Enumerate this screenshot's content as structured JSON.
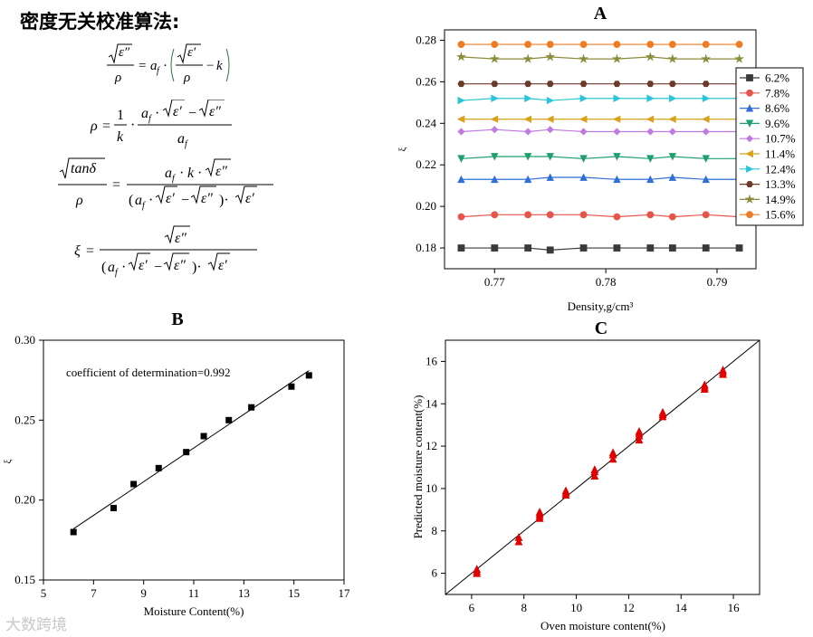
{
  "equations": {
    "title": "密度无关校准算法:",
    "eq1": "√ε″ / ρ = a_f · ( √ε′ / ρ − k )",
    "eq2": "ρ = (1/k) · ( a_f · √ε′ − √ε″ ) / a_f",
    "eq3": "√tanδ / ρ = a_f · k · √ε″ / ( ( a_f · √ε′ − √ε″ ) · √ε′ )",
    "eq4": "ξ = √ε″ / ( ( a_f · √ε′ − √ε″ ) · √ε′ )"
  },
  "watermark": "大数跨境",
  "chart_data": [
    {
      "panel": "A",
      "type": "line",
      "xlabel": "Density,g/cm³",
      "ylabel": "ξ",
      "xlim": [
        0.7655,
        0.7935
      ],
      "ylim": [
        0.17,
        0.285
      ],
      "xticks": [
        0.77,
        0.78,
        0.79
      ],
      "yticks": [
        0.18,
        0.2,
        0.22,
        0.24,
        0.26,
        0.28
      ],
      "x": [
        0.767,
        0.77,
        0.773,
        0.775,
        0.778,
        0.781,
        0.784,
        0.786,
        0.789,
        0.792
      ],
      "legend_position": "right",
      "series": [
        {
          "name": "6.2%",
          "color": "#3a3a3a",
          "marker": "square",
          "values": [
            0.18,
            0.18,
            0.18,
            0.179,
            0.18,
            0.18,
            0.18,
            0.18,
            0.18,
            0.18
          ]
        },
        {
          "name": "7.8%",
          "color": "#e8534a",
          "marker": "circle",
          "values": [
            0.195,
            0.196,
            0.196,
            0.196,
            0.196,
            0.195,
            0.196,
            0.195,
            0.196,
            0.195
          ]
        },
        {
          "name": "8.6%",
          "color": "#2f6fd6",
          "marker": "triangle-up",
          "values": [
            0.213,
            0.213,
            0.213,
            0.214,
            0.214,
            0.213,
            0.213,
            0.214,
            0.213,
            0.213
          ]
        },
        {
          "name": "9.6%",
          "color": "#1f9e6e",
          "marker": "triangle-down",
          "values": [
            0.223,
            0.224,
            0.224,
            0.224,
            0.223,
            0.224,
            0.223,
            0.224,
            0.223,
            0.223
          ]
        },
        {
          "name": "10.7%",
          "color": "#c07be3",
          "marker": "diamond",
          "values": [
            0.236,
            0.237,
            0.236,
            0.237,
            0.236,
            0.236,
            0.236,
            0.236,
            0.236,
            0.236
          ]
        },
        {
          "name": "11.4%",
          "color": "#d8a21a",
          "marker": "triangle-left",
          "values": [
            0.242,
            0.242,
            0.242,
            0.242,
            0.242,
            0.242,
            0.242,
            0.242,
            0.242,
            0.242
          ]
        },
        {
          "name": "12.4%",
          "color": "#2cc5d8",
          "marker": "triangle-right",
          "values": [
            0.251,
            0.252,
            0.252,
            0.251,
            0.252,
            0.252,
            0.252,
            0.252,
            0.252,
            0.252
          ]
        },
        {
          "name": "13.3%",
          "color": "#6b3a2a",
          "marker": "hexagon",
          "values": [
            0.259,
            0.259,
            0.259,
            0.259,
            0.259,
            0.259,
            0.259,
            0.259,
            0.259,
            0.259
          ]
        },
        {
          "name": "14.9%",
          "color": "#8b8b3c",
          "marker": "star",
          "values": [
            0.272,
            0.271,
            0.271,
            0.272,
            0.271,
            0.271,
            0.272,
            0.271,
            0.271,
            0.271
          ]
        },
        {
          "name": "15.6%",
          "color": "#ef7b22",
          "marker": "circle",
          "values": [
            0.278,
            0.278,
            0.278,
            0.278,
            0.278,
            0.278,
            0.278,
            0.278,
            0.278,
            0.278
          ]
        }
      ]
    },
    {
      "panel": "B",
      "type": "scatter",
      "xlabel": "Moisture Content(%)",
      "ylabel": "ξ",
      "xlim": [
        5,
        17
      ],
      "ylim": [
        0.15,
        0.3
      ],
      "xticks": [
        5,
        7,
        9,
        11,
        13,
        15,
        17
      ],
      "yticks": [
        0.15,
        0.2,
        0.25,
        0.3
      ],
      "annotation": "coefficient of determination=0.992",
      "points": {
        "x": [
          6.2,
          7.8,
          8.6,
          9.6,
          10.7,
          11.4,
          12.4,
          13.3,
          14.9,
          15.6
        ],
        "y": [
          0.18,
          0.195,
          0.21,
          0.22,
          0.23,
          0.24,
          0.25,
          0.258,
          0.271,
          0.278
        ]
      },
      "fit_line": {
        "x": [
          6.2,
          15.6
        ],
        "y": [
          0.182,
          0.281
        ]
      }
    },
    {
      "panel": "C",
      "type": "scatter",
      "xlabel": "Oven moisture content(%)",
      "ylabel": "Predicted moisture content(%)",
      "xlim": [
        5,
        17
      ],
      "ylim": [
        5,
        17
      ],
      "xticks": [
        6,
        8,
        10,
        12,
        14,
        16
      ],
      "yticks": [
        6,
        8,
        10,
        12,
        14,
        16
      ],
      "marker_color": "#e00000",
      "points": {
        "x": [
          6.2,
          6.2,
          6.2,
          7.8,
          7.8,
          8.6,
          8.6,
          8.6,
          8.6,
          9.6,
          9.6,
          9.6,
          10.7,
          10.7,
          10.7,
          11.4,
          11.4,
          11.4,
          12.4,
          12.4,
          12.4,
          12.4,
          13.3,
          13.3,
          13.3,
          14.9,
          14.9,
          14.9,
          15.6,
          15.6,
          15.6
        ],
        "y": [
          6.0,
          6.1,
          6.2,
          7.5,
          7.7,
          8.6,
          8.7,
          8.8,
          8.9,
          9.7,
          9.8,
          9.9,
          10.6,
          10.8,
          10.9,
          11.4,
          11.6,
          11.7,
          12.3,
          12.5,
          12.6,
          12.7,
          13.4,
          13.5,
          13.6,
          14.7,
          14.8,
          14.9,
          15.4,
          15.5,
          15.6
        ]
      },
      "reference_line": {
        "x": [
          5,
          17
        ],
        "y": [
          5,
          17
        ]
      }
    }
  ]
}
